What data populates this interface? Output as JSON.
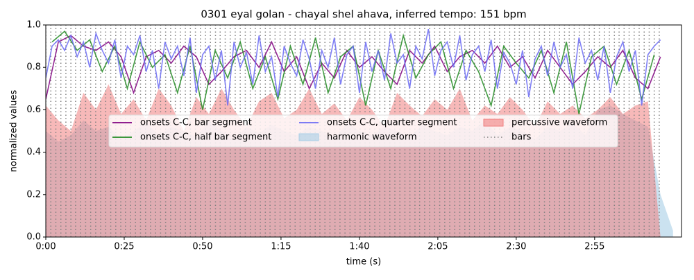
{
  "chart_data": {
    "type": "line",
    "title": "0301 eyal golan - chayal shel ahava, inferred tempo: 151 bpm",
    "x_label": "time (s)",
    "y_label": "normalized values",
    "xlim": [
      0,
      202.7
    ],
    "ylim": [
      0,
      1
    ],
    "xticks": [
      {
        "value": 0,
        "label": "0:00"
      },
      {
        "value": 25,
        "label": "0:25"
      },
      {
        "value": 50,
        "label": "0:50"
      },
      {
        "value": 75,
        "label": "1:15"
      },
      {
        "value": 100,
        "label": "1:40"
      },
      {
        "value": 125,
        "label": "2:05"
      },
      {
        "value": 150,
        "label": "2:30"
      },
      {
        "value": 175,
        "label": "2:55"
      }
    ],
    "yticks": [
      {
        "value": 0,
        "label": "0.0"
      },
      0.2,
      0.4,
      0.6,
      0.8,
      {
        "value": 1,
        "label": "1.0"
      }
    ],
    "legend": "upper center",
    "series": [
      {
        "name": "onsets C-C, bar segment",
        "style": "line",
        "color": "#800080",
        "x": [
          0,
          4,
          8,
          12,
          16,
          20,
          24,
          28,
          32,
          36,
          40,
          44,
          48,
          52,
          56,
          60,
          64,
          68,
          72,
          76,
          80,
          84,
          88,
          92,
          96,
          100,
          104,
          108,
          112,
          116,
          120,
          124,
          128,
          132,
          136,
          140,
          144,
          148,
          152,
          156,
          160,
          164,
          168,
          172,
          176,
          180,
          184,
          188,
          192,
          196
        ],
        "values": [
          0.65,
          0.92,
          0.95,
          0.9,
          0.88,
          0.92,
          0.85,
          0.68,
          0.85,
          0.88,
          0.82,
          0.9,
          0.85,
          0.72,
          0.78,
          0.85,
          0.88,
          0.8,
          0.92,
          0.78,
          0.85,
          0.7,
          0.82,
          0.75,
          0.88,
          0.8,
          0.85,
          0.78,
          0.72,
          0.88,
          0.82,
          0.9,
          0.78,
          0.85,
          0.88,
          0.82,
          0.9,
          0.8,
          0.85,
          0.75,
          0.88,
          0.8,
          0.72,
          0.78,
          0.85,
          0.8,
          0.88,
          0.75,
          0.7,
          0.85
        ]
      },
      {
        "name": "onsets C-C, half bar segment",
        "style": "line",
        "color": "#228b22",
        "x": [
          2,
          6,
          10,
          14,
          18,
          22,
          26,
          30,
          34,
          38,
          42,
          46,
          50,
          54,
          58,
          62,
          66,
          70,
          74,
          78,
          82,
          86,
          90,
          94,
          98,
          102,
          106,
          110,
          114,
          118,
          122,
          126,
          130,
          134,
          138,
          142,
          146,
          150,
          154,
          158,
          162,
          166,
          170,
          174,
          178,
          182,
          186,
          190,
          194
        ],
        "values": [
          0.92,
          0.97,
          0.88,
          0.93,
          0.78,
          0.9,
          0.7,
          0.92,
          0.8,
          0.86,
          0.68,
          0.9,
          0.6,
          0.88,
          0.75,
          0.92,
          0.7,
          0.85,
          0.65,
          0.9,
          0.72,
          0.94,
          0.68,
          0.85,
          0.9,
          0.62,
          0.88,
          0.7,
          0.95,
          0.75,
          0.86,
          0.92,
          0.7,
          0.88,
          0.78,
          0.62,
          0.9,
          0.82,
          0.75,
          0.88,
          0.68,
          0.92,
          0.58,
          0.85,
          0.9,
          0.72,
          0.88,
          0.65,
          0.86
        ]
      },
      {
        "name": "onsets C-C, quarter segment",
        "style": "line",
        "color": "#6b6bf5",
        "x": [
          0,
          2,
          4,
          6,
          8,
          10,
          12,
          14,
          16,
          18,
          20,
          22,
          24,
          26,
          28,
          30,
          32,
          34,
          36,
          38,
          40,
          42,
          44,
          46,
          48,
          50,
          52,
          54,
          56,
          58,
          60,
          62,
          64,
          66,
          68,
          70,
          72,
          74,
          76,
          78,
          80,
          82,
          84,
          86,
          88,
          90,
          92,
          94,
          96,
          98,
          100,
          102,
          104,
          106,
          108,
          110,
          112,
          114,
          116,
          118,
          120,
          122,
          124,
          126,
          128,
          130,
          132,
          134,
          136,
          138,
          140,
          142,
          144,
          146,
          148,
          150,
          152,
          154,
          156,
          158,
          160,
          162,
          164,
          166,
          168,
          170,
          172,
          174,
          176,
          178,
          180,
          182,
          184,
          186,
          188,
          190,
          192,
          194,
          196
        ],
        "values": [
          0.75,
          0.9,
          0.93,
          0.88,
          0.95,
          0.85,
          0.92,
          0.8,
          0.96,
          0.88,
          0.82,
          0.93,
          0.75,
          0.9,
          0.86,
          0.95,
          0.78,
          0.88,
          0.7,
          0.92,
          0.84,
          0.9,
          0.76,
          0.94,
          0.68,
          0.86,
          0.9,
          0.74,
          0.88,
          0.62,
          0.92,
          0.8,
          0.87,
          0.72,
          0.95,
          0.78,
          0.85,
          0.66,
          0.9,
          0.82,
          0.76,
          0.93,
          0.84,
          0.7,
          0.88,
          0.8,
          0.94,
          0.72,
          0.86,
          0.9,
          0.68,
          0.92,
          0.78,
          0.88,
          0.74,
          0.96,
          0.82,
          0.86,
          0.7,
          0.9,
          0.84,
          0.98,
          0.76,
          0.88,
          0.92,
          0.8,
          0.95,
          0.74,
          0.86,
          0.9,
          0.78,
          0.93,
          0.7,
          0.87,
          0.82,
          0.72,
          0.88,
          0.66,
          0.84,
          0.9,
          0.76,
          0.92,
          0.8,
          0.86,
          0.7,
          0.94,
          0.82,
          0.88,
          0.74,
          0.9,
          0.68,
          0.85,
          0.92,
          0.78,
          0.88,
          0.62,
          0.86,
          0.9,
          0.93
        ]
      },
      {
        "name": "harmonic waveform",
        "style": "area",
        "color": "#a9cfe6",
        "x": [
          0,
          4,
          8,
          12,
          16,
          20,
          24,
          28,
          32,
          36,
          40,
          44,
          48,
          52,
          56,
          60,
          64,
          68,
          72,
          76,
          80,
          84,
          88,
          92,
          96,
          100,
          104,
          108,
          112,
          116,
          120,
          124,
          128,
          132,
          136,
          140,
          144,
          148,
          152,
          156,
          160,
          164,
          168,
          172,
          176,
          180,
          184,
          188,
          192,
          196,
          200
        ],
        "values": [
          0.5,
          0.45,
          0.48,
          0.55,
          0.5,
          0.52,
          0.46,
          0.5,
          0.54,
          0.48,
          0.52,
          0.5,
          0.47,
          0.55,
          0.5,
          0.46,
          0.52,
          0.49,
          0.53,
          0.5,
          0.48,
          0.52,
          0.5,
          0.46,
          0.54,
          0.5,
          0.48,
          0.52,
          0.5,
          0.47,
          0.53,
          0.5,
          0.48,
          0.52,
          0.5,
          0.55,
          0.48,
          0.52,
          0.5,
          0.46,
          0.52,
          0.5,
          0.54,
          0.48,
          0.6,
          0.62,
          0.58,
          0.55,
          0.52,
          0.2,
          0.03
        ]
      },
      {
        "name": "percussive waveform",
        "style": "area",
        "color": "#f08080",
        "x": [
          0,
          4,
          8,
          12,
          16,
          20,
          24,
          28,
          32,
          36,
          40,
          44,
          48,
          52,
          56,
          60,
          64,
          68,
          72,
          76,
          80,
          84,
          88,
          92,
          96,
          100,
          104,
          108,
          112,
          116,
          120,
          124,
          128,
          132,
          136,
          140,
          144,
          148,
          152,
          156,
          160,
          164,
          168,
          172,
          176,
          180,
          184,
          188,
          192,
          196,
          200
        ],
        "values": [
          0.62,
          0.55,
          0.5,
          0.68,
          0.6,
          0.72,
          0.58,
          0.65,
          0.55,
          0.7,
          0.62,
          0.5,
          0.66,
          0.58,
          0.7,
          0.6,
          0.52,
          0.64,
          0.68,
          0.56,
          0.6,
          0.7,
          0.58,
          0.63,
          0.55,
          0.66,
          0.6,
          0.52,
          0.68,
          0.62,
          0.57,
          0.65,
          0.6,
          0.7,
          0.55,
          0.62,
          0.58,
          0.66,
          0.6,
          0.52,
          0.64,
          0.58,
          0.62,
          0.56,
          0.6,
          0.66,
          0.58,
          0.62,
          0.64,
          0,
          0
        ]
      },
      {
        "name": "bars",
        "style": "vline",
        "color": "#808080",
        "x": [
          0,
          1.6,
          3.2,
          4.8,
          6.4,
          8,
          9.5,
          11.1,
          12.7,
          14.3,
          15.9,
          17.5,
          19.1,
          20.7,
          22.3,
          23.9,
          25.4,
          27,
          28.6,
          30.2,
          31.8,
          33.4,
          35,
          36.6,
          38.2,
          39.8,
          41.3,
          42.9,
          44.5,
          46.1,
          47.7,
          49.3,
          50.9,
          52.5,
          54.1,
          55.6,
          57.2,
          58.8,
          60.4,
          62,
          63.6,
          65.2,
          66.8,
          68.4,
          70,
          71.5,
          73.1,
          74.7,
          76.3,
          77.9,
          79.5,
          81.1,
          82.7,
          84.3,
          85.9,
          87.4,
          89,
          90.6,
          92.2,
          93.8,
          95.4,
          97,
          98.6,
          100.2,
          101.8,
          103.3,
          104.9,
          106.5,
          108.1,
          109.7,
          111.3,
          112.9,
          114.5,
          116.1,
          117.7,
          119.2,
          120.8,
          122.4,
          124,
          125.6,
          127.2,
          128.8,
          130.4,
          132,
          133.6,
          135.1,
          136.7,
          138.3,
          139.9,
          141.5,
          143.1,
          144.7,
          146.3,
          147.9,
          149.5,
          151,
          152.6,
          154.2,
          155.8,
          157.4,
          159,
          160.6,
          162.2,
          163.8,
          165.4,
          166.9,
          168.5,
          170.1,
          171.7,
          173.3,
          174.9,
          176.5,
          178.1,
          179.7,
          181.3,
          182.8,
          184.4,
          186,
          187.6,
          189.2,
          190.8,
          192.4,
          194,
          195.6
        ]
      }
    ]
  }
}
